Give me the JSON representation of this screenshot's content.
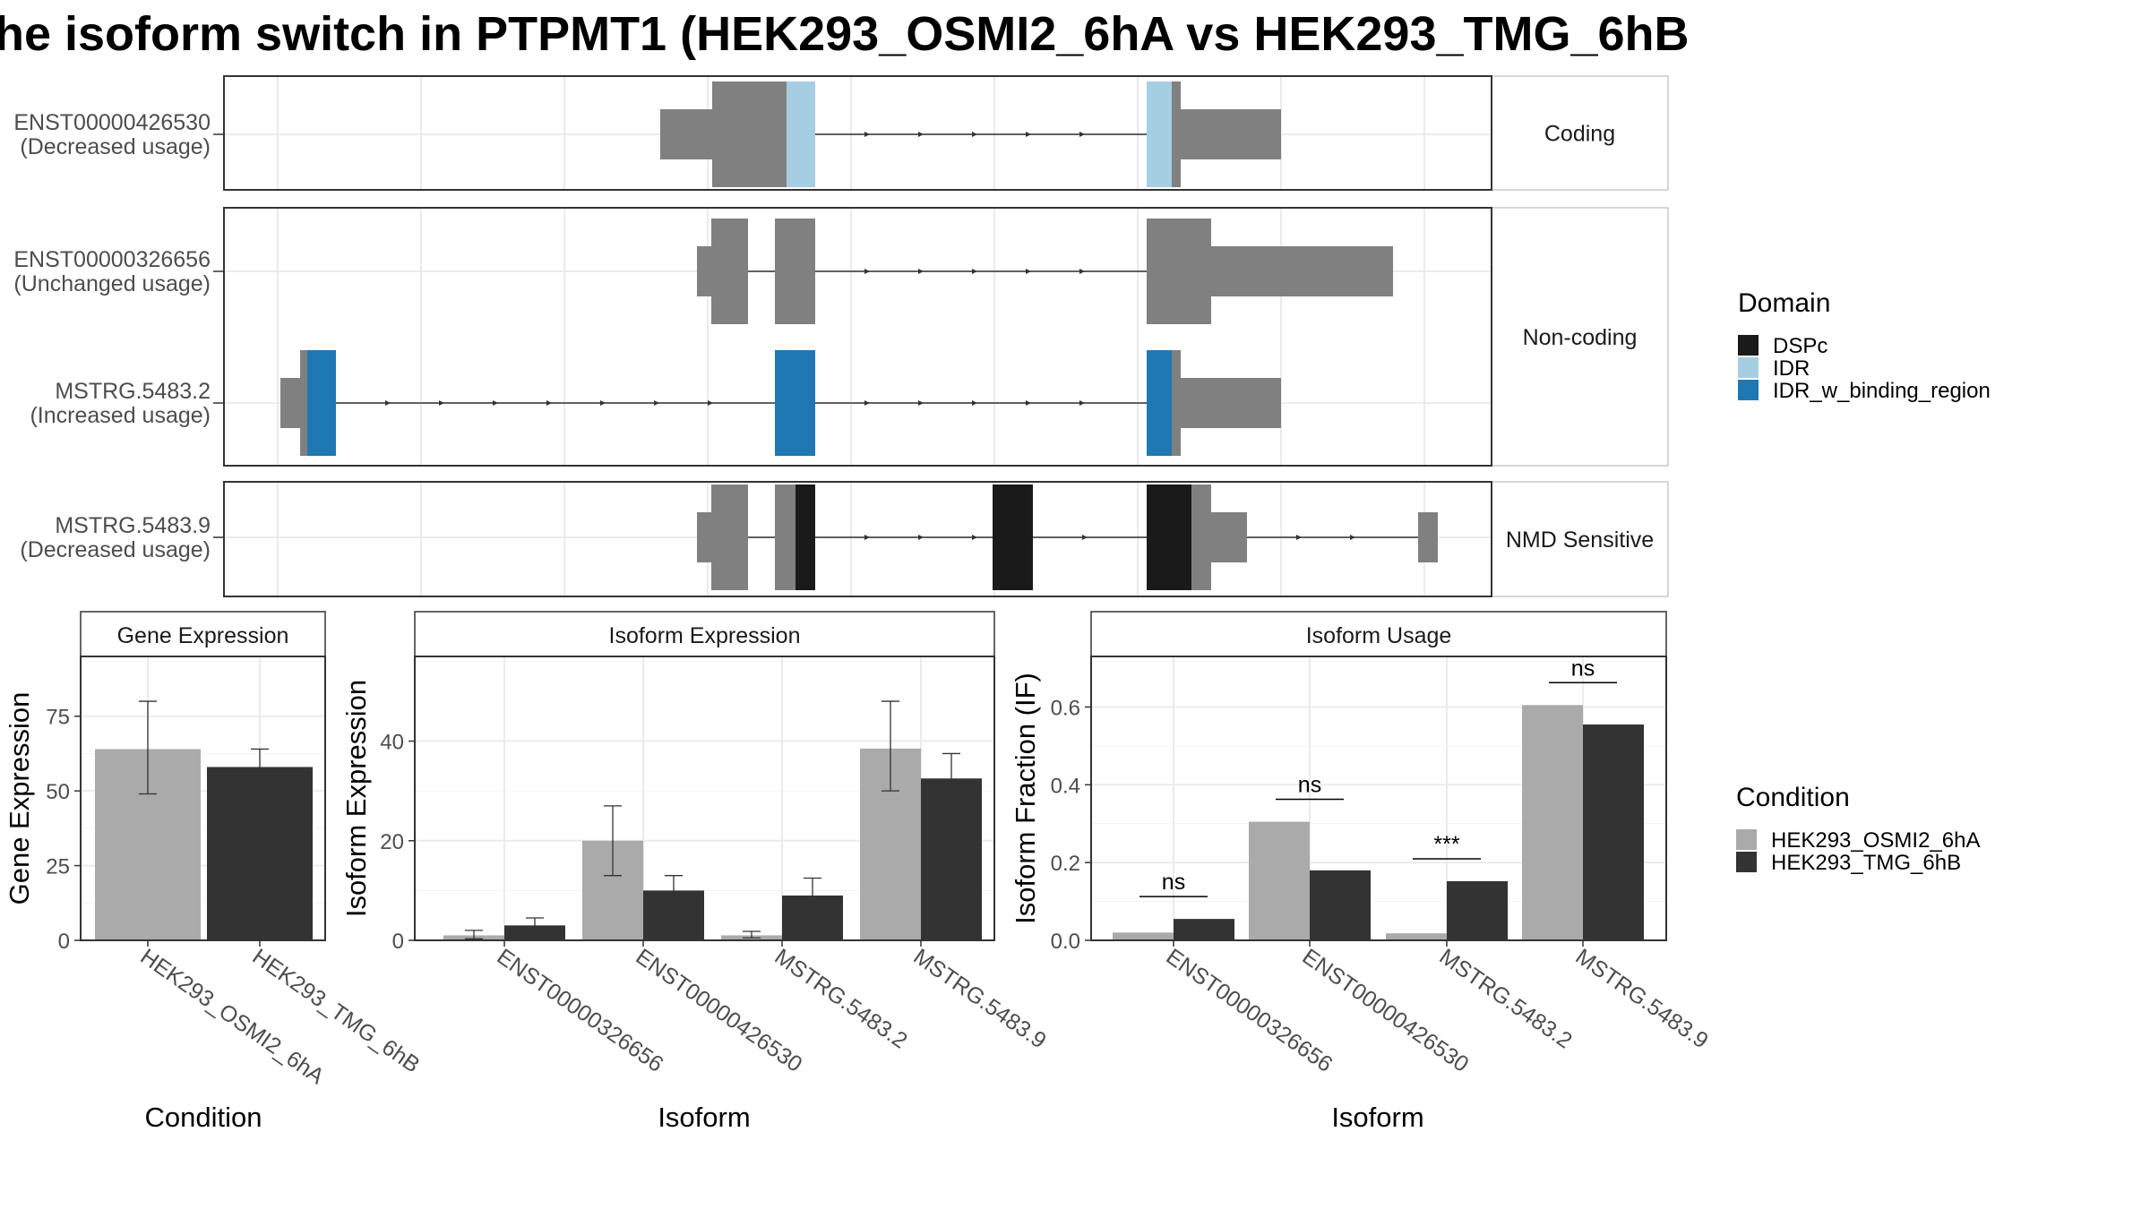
{
  "title": "he isoform switch in PTPMT1 (HEK293_OSMI2_6hA vs HEK293_TMG_6hB",
  "colors": {
    "exon": "#808080",
    "DSPc": "#1a1a1a",
    "IDR": "#a6cee3",
    "IDR_w_binding_region": "#1f78b4",
    "HEK293_OSMI2_6hA": "#aaaaaa",
    "HEK293_TMG_6hB": "#333333"
  },
  "structure": {
    "panels": [
      {
        "strip": "Coding"
      },
      {
        "strip": "Non-coding"
      },
      {
        "strip": "NMD Sensitive"
      }
    ],
    "transcripts": [
      {
        "id": "ENST00000426530",
        "status": "(Decreased usage)",
        "panel": 0
      },
      {
        "id": "ENST00000326656",
        "status": "(Unchanged usage)",
        "panel": 1
      },
      {
        "id": "MSTRG.5483.2",
        "status": "(Increased usage)",
        "panel": 1
      },
      {
        "id": "MSTRG.5483.9",
        "status": "(Decreased usage)",
        "panel": 2
      }
    ]
  },
  "legends": {
    "domain": {
      "title": "Domain",
      "entries": [
        {
          "label": "DSPc",
          "key": "DSPc"
        },
        {
          "label": "IDR",
          "key": "IDR"
        },
        {
          "label": "IDR_w_binding_region",
          "key": "IDR_w_binding_region"
        }
      ]
    },
    "condition": {
      "title": "Condition",
      "entries": [
        {
          "label": "HEK293_OSMI2_6hA",
          "key": "HEK293_OSMI2_6hA"
        },
        {
          "label": "HEK293_TMG_6hB",
          "key": "HEK293_TMG_6hB"
        }
      ]
    }
  },
  "chart_data": [
    {
      "type": "bar",
      "strip": "Gene Expression",
      "xlabel": "Condition",
      "ylabel": "Gene Expression",
      "ylim": [
        0,
        95
      ],
      "yticks": [
        0,
        25,
        50,
        75
      ],
      "categories": [
        "HEK293_OSMI2_6hA",
        "HEK293_TMG_6hB"
      ],
      "values": [
        64,
        58
      ],
      "error": [
        [
          49,
          80
        ],
        [
          53,
          64
        ]
      ]
    },
    {
      "type": "bar",
      "strip": "Isoform Expression",
      "xlabel": "Isoform",
      "ylabel": "Isoform Expression",
      "ylim": [
        0,
        57
      ],
      "yticks": [
        0,
        20,
        40
      ],
      "categories": [
        "ENST00000326656",
        "ENST00000426530",
        "MSTRG.5483.2",
        "MSTRG.5483.9"
      ],
      "series": [
        {
          "name": "HEK293_OSMI2_6hA",
          "values": [
            1.0,
            20.0,
            1.0,
            38.5
          ],
          "error": [
            [
              0.3,
              2.0
            ],
            [
              13.0,
              27.0
            ],
            [
              0.5,
              1.8
            ],
            [
              30.0,
              48.0
            ]
          ]
        },
        {
          "name": "HEK293_TMG_6hB",
          "values": [
            3.0,
            10.0,
            9.0,
            32.5
          ],
          "error": [
            [
              1.8,
              4.5
            ],
            [
              7.5,
              13.0
            ],
            [
              5.5,
              12.5
            ],
            [
              27.5,
              37.5
            ]
          ]
        }
      ]
    },
    {
      "type": "bar",
      "strip": "Isoform Usage",
      "xlabel": "Isoform",
      "ylabel": "Isoform Fraction (IF)",
      "ylim": [
        0,
        0.73
      ],
      "yticks": [
        0.0,
        0.2,
        0.4,
        0.6
      ],
      "categories": [
        "ENST00000326656",
        "ENST00000426530",
        "MSTRG.5483.2",
        "MSTRG.5483.9"
      ],
      "series": [
        {
          "name": "HEK293_OSMI2_6hA",
          "values": [
            0.02,
            0.305,
            0.018,
            0.605
          ]
        },
        {
          "name": "HEK293_TMG_6hB",
          "values": [
            0.055,
            0.18,
            0.152,
            0.555
          ]
        }
      ],
      "significance": [
        "ns",
        "ns",
        "***",
        "ns"
      ]
    }
  ]
}
